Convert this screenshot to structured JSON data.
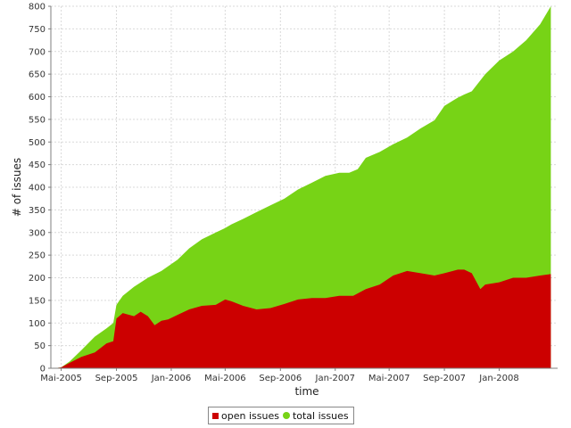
{
  "chart_data": {
    "type": "area",
    "title": "",
    "xlabel": "time",
    "ylabel": "# of issues",
    "ylim": [
      0,
      800
    ],
    "y_ticks": [
      0,
      50,
      100,
      150,
      200,
      250,
      300,
      350,
      400,
      450,
      500,
      550,
      600,
      650,
      700,
      750,
      800
    ],
    "x_ticks": [
      "Mai-2005",
      "Sep-2005",
      "Jan-2006",
      "Mai-2006",
      "Sep-2006",
      "Jan-2007",
      "Mai-2007",
      "Sep-2007",
      "Jan-2008"
    ],
    "xlim": [
      "2005-04-08",
      "2008-05-10"
    ],
    "grid": true,
    "legend_position": "bottom",
    "colors": {
      "open": "#cc0000",
      "total": "#77d316"
    },
    "series": [
      {
        "name": "total issues",
        "x": [
          "2005-04-15",
          "2005-05-01",
          "2005-05-20",
          "2005-06-15",
          "2005-07-15",
          "2005-08-10",
          "2005-08-25",
          "2005-09-01",
          "2005-09-15",
          "2005-10-10",
          "2005-11-10",
          "2005-12-10",
          "2006-01-15",
          "2006-02-10",
          "2006-03-10",
          "2006-04-10",
          "2006-05-01",
          "2006-05-15",
          "2006-06-10",
          "2006-07-10",
          "2006-08-10",
          "2006-09-10",
          "2006-10-10",
          "2006-11-10",
          "2006-12-10",
          "2007-01-10",
          "2007-02-01",
          "2007-02-20",
          "2007-03-10",
          "2007-04-10",
          "2007-05-10",
          "2007-06-10",
          "2007-07-10",
          "2007-08-10",
          "2007-09-01",
          "2007-10-01",
          "2007-10-15",
          "2007-11-01",
          "2007-12-01",
          "2008-01-01",
          "2008-02-01",
          "2008-03-01",
          "2008-04-01",
          "2008-04-25"
        ],
        "values": [
          0,
          2,
          15,
          40,
          70,
          88,
          100,
          140,
          160,
          180,
          200,
          215,
          240,
          265,
          285,
          300,
          310,
          318,
          330,
          345,
          360,
          375,
          395,
          410,
          425,
          432,
          432,
          440,
          465,
          478,
          495,
          510,
          530,
          548,
          580,
          598,
          605,
          612,
          650,
          680,
          700,
          725,
          760,
          800
        ]
      },
      {
        "name": "open issues",
        "x": [
          "2005-04-15",
          "2005-05-01",
          "2005-05-20",
          "2005-06-15",
          "2005-07-15",
          "2005-08-10",
          "2005-08-25",
          "2005-09-01",
          "2005-09-15",
          "2005-10-10",
          "2005-10-25",
          "2005-11-10",
          "2005-11-25",
          "2005-12-10",
          "2005-12-25",
          "2006-01-15",
          "2006-02-10",
          "2006-03-10",
          "2006-04-10",
          "2006-05-01",
          "2006-05-15",
          "2006-06-10",
          "2006-07-10",
          "2006-08-10",
          "2006-09-10",
          "2006-10-10",
          "2006-11-10",
          "2006-12-10",
          "2007-01-10",
          "2007-02-10",
          "2007-03-10",
          "2007-04-10",
          "2007-05-10",
          "2007-06-10",
          "2007-07-10",
          "2007-08-10",
          "2007-09-01",
          "2007-10-01",
          "2007-10-15",
          "2007-11-01",
          "2007-11-20",
          "2007-12-01",
          "2008-01-01",
          "2008-02-01",
          "2008-03-01",
          "2008-04-01",
          "2008-04-25"
        ],
        "values": [
          0,
          2,
          12,
          25,
          35,
          55,
          60,
          110,
          122,
          115,
          125,
          115,
          95,
          105,
          108,
          118,
          130,
          138,
          140,
          152,
          148,
          138,
          130,
          133,
          142,
          152,
          155,
          155,
          160,
          160,
          175,
          185,
          205,
          215,
          210,
          205,
          210,
          218,
          218,
          210,
          175,
          185,
          190,
          200,
          200,
          205,
          208
        ]
      }
    ]
  }
}
